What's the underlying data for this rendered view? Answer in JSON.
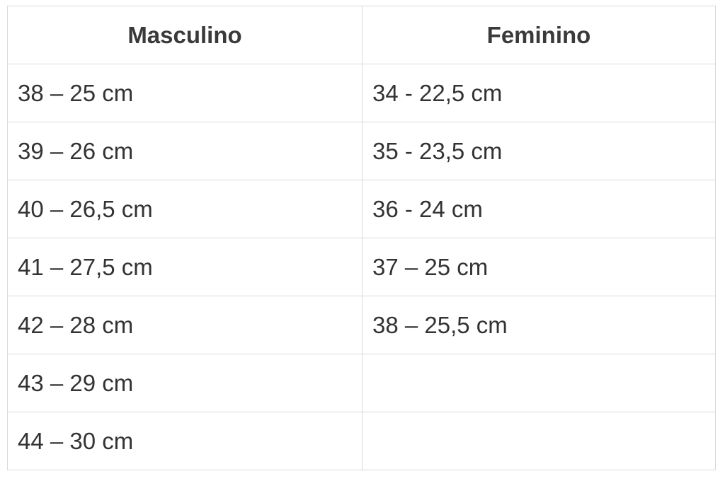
{
  "table": {
    "header": [
      "Masculino",
      "Feminino"
    ],
    "rows": [
      [
        "38 – 25 cm",
        "34 - 22,5 cm"
      ],
      [
        "39 – 26 cm",
        "35 - 23,5 cm"
      ],
      [
        "40 – 26,5 cm",
        "36 - 24 cm"
      ],
      [
        "41 – 27,5 cm",
        "37 – 25 cm"
      ],
      [
        "42 – 28 cm",
        "38 – 25,5 cm"
      ],
      [
        "43 – 29 cm"
      ],
      [
        "44 – 30 cm"
      ]
    ]
  }
}
